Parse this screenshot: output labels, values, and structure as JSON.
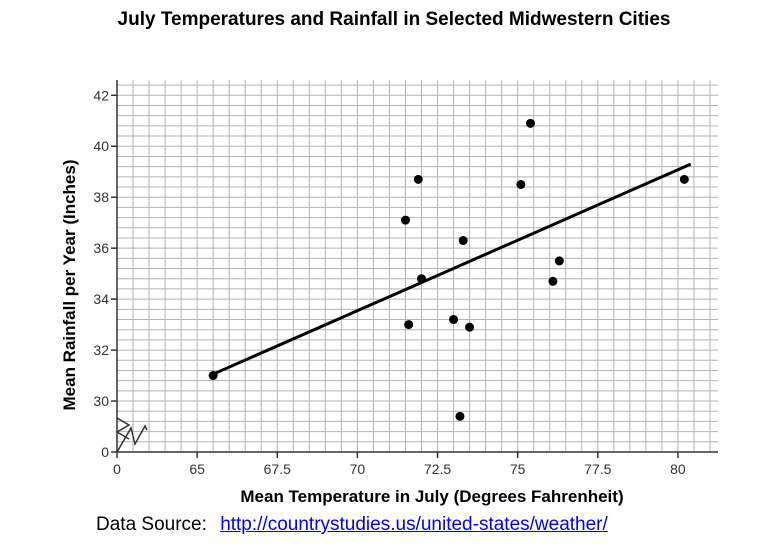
{
  "chart_data": {
    "type": "scatter",
    "title": "July Temperatures and Rainfall in Selected Midwestern Cities",
    "xlabel": "Mean Temperature in July (Degrees Fahrenheit)",
    "ylabel": "Mean Rainfall per Year (Inches)",
    "xlim": [
      62.5,
      81.25
    ],
    "ylim": [
      28,
      42.6
    ],
    "x_ticks": [
      65,
      67.5,
      70,
      72.5,
      75,
      77.5,
      80
    ],
    "x_tick_labels": [
      "65",
      "67.5",
      "70",
      "72.5",
      "75",
      "77.5",
      "80"
    ],
    "y_ticks": [
      30,
      32,
      34,
      36,
      38,
      40,
      42
    ],
    "y_tick_labels": [
      "30",
      "32",
      "34",
      "36",
      "38",
      "40",
      "42"
    ],
    "origin_label_x": "0",
    "origin_label_y": "0",
    "axis_break": true,
    "grid": true,
    "points": [
      {
        "x": 65.5,
        "y": 31.0
      },
      {
        "x": 71.5,
        "y": 37.1
      },
      {
        "x": 71.6,
        "y": 33.0
      },
      {
        "x": 71.9,
        "y": 38.7
      },
      {
        "x": 72.0,
        "y": 34.8
      },
      {
        "x": 73.0,
        "y": 33.2
      },
      {
        "x": 73.2,
        "y": 29.4
      },
      {
        "x": 73.3,
        "y": 36.3
      },
      {
        "x": 73.5,
        "y": 32.9
      },
      {
        "x": 75.1,
        "y": 38.5
      },
      {
        "x": 75.4,
        "y": 40.9
      },
      {
        "x": 76.1,
        "y": 34.7
      },
      {
        "x": 76.3,
        "y": 35.5
      },
      {
        "x": 80.2,
        "y": 38.7
      }
    ],
    "trend_line": {
      "x1": 65.4,
      "y1": 31.0,
      "x2": 80.4,
      "y2": 39.3
    }
  },
  "footer": {
    "source_label": "Data Source:",
    "source_url": "http://countrystudies.us/united-states/weather/"
  },
  "colors": {
    "grid": "#b3b3b3",
    "axis": "#333333",
    "marks": "#000000",
    "link": "#0000ee"
  }
}
